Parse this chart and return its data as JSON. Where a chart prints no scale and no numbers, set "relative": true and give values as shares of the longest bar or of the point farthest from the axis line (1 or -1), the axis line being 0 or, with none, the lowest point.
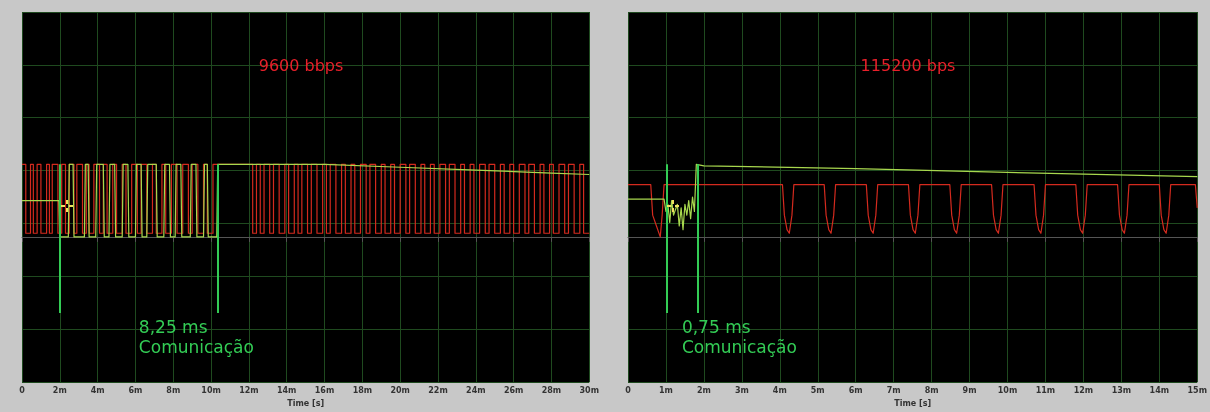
{
  "chart_data": [
    {
      "type": "line",
      "title": "9600 bbps",
      "xlabel": "Time [s]",
      "relative": true,
      "grid": true,
      "marker": "none",
      "xlim": [
        0,
        30
      ],
      "xticks": [
        0,
        {
          "value": 2,
          "label": "2m"
        },
        {
          "value": 4,
          "label": "4m"
        },
        {
          "value": 6,
          "label": "6m"
        },
        {
          "value": 8,
          "label": "8m"
        },
        {
          "value": 10,
          "label": "10m"
        },
        {
          "value": 12,
          "label": "12m"
        },
        {
          "value": 14,
          "label": "14m"
        },
        {
          "value": 16,
          "label": "16m"
        },
        {
          "value": 18,
          "label": "18m"
        },
        {
          "value": 20,
          "label": "20m"
        },
        {
          "value": 22,
          "label": "22m"
        },
        {
          "value": 24,
          "label": "24m"
        },
        {
          "value": 26,
          "label": "26m"
        },
        {
          "value": 28,
          "label": "28m"
        },
        {
          "value": 30,
          "label": "30m"
        }
      ],
      "series": [
        {
          "type": "step",
          "color": "#d42a1e",
          "x": [
            0,
            0.2,
            0.45,
            0.6,
            0.8,
            1.0,
            1.3,
            1.45,
            1.6,
            1.9,
            2.1,
            2.3,
            2.5,
            2.75,
            2.9,
            3.2,
            3.4,
            3.55,
            3.8,
            4.1,
            4.3,
            4.5,
            4.8,
            5.0,
            5.3,
            5.5,
            5.8,
            6.1,
            6.3,
            6.6,
            6.9,
            7.1,
            7.4,
            7.6,
            7.9,
            8.2,
            8.5,
            8.8,
            9.0,
            9.3,
            9.6,
            9.8,
            10.1,
            12.2,
            12.4,
            12.6,
            12.8,
            13.1,
            13.3,
            13.6,
            13.9,
            14.1,
            14.4,
            14.6,
            14.8,
            15.1,
            15.3,
            15.6,
            15.9,
            16.1,
            16.3,
            16.6,
            16.9,
            17.1,
            17.4,
            17.6,
            17.9,
            18.2,
            18.4,
            18.7,
            19.0,
            19.2,
            19.5,
            19.7,
            20.0,
            20.3,
            20.5,
            20.8,
            21.1,
            21.3,
            21.6,
            21.8,
            22.1,
            22.4,
            22.6,
            22.9,
            23.2,
            23.4,
            23.7,
            23.9,
            24.2,
            24.5,
            24.7,
            25.0,
            25.3,
            25.5,
            25.8,
            26.0,
            26.3,
            26.6,
            26.8,
            27.1,
            27.4,
            27.6,
            27.9,
            28.1,
            28.4,
            28.7,
            28.9,
            29.2,
            29.5,
            29.7,
            30
          ],
          "values": [
            1,
            0.05,
            1,
            0.05,
            1,
            0.05,
            1,
            0.05,
            1,
            0.05,
            1,
            0.05,
            1,
            0.05,
            1,
            0.05,
            1,
            0.05,
            1,
            0.05,
            1,
            0.05,
            1,
            0.05,
            1,
            0.05,
            1,
            0.05,
            1,
            0.05,
            1,
            0.05,
            1,
            0.05,
            1,
            0.05,
            1,
            0.05,
            1,
            0.05,
            1,
            0.05,
            1,
            0.05,
            1,
            0.05,
            1,
            0.05,
            1,
            0.05,
            1,
            0.05,
            1,
            0.05,
            1,
            0.05,
            1,
            0.05,
            1,
            0.05,
            1,
            0.05,
            1,
            0.05,
            1,
            0.05,
            1,
            0.05,
            1,
            0.05,
            1,
            0.05,
            1,
            0.05,
            1,
            0.05,
            1,
            0.05,
            1,
            0.05,
            1,
            0.05,
            1,
            0.05,
            1,
            0.05,
            1,
            0.05,
            1,
            0.05,
            1,
            0.05,
            1,
            0.05,
            1,
            0.05,
            1,
            0.05,
            1,
            0.05,
            1,
            0.05,
            1,
            0.05,
            1,
            0.05,
            1,
            0.05,
            1,
            0.05,
            1,
            0.05,
            0.05
          ]
        },
        {
          "type": "line",
          "color": "#a8d84e",
          "x": [
            0,
            1.95,
            2.0,
            2.45,
            2.5,
            2.7,
            2.75,
            3.3,
            3.35,
            3.5,
            3.55,
            3.9,
            3.95,
            4.3,
            4.35,
            4.6,
            4.65,
            4.9,
            4.95,
            5.3,
            5.35,
            5.6,
            5.65,
            6.0,
            6.05,
            6.3,
            6.35,
            6.6,
            6.65,
            7.1,
            7.15,
            7.5,
            7.55,
            7.8,
            7.85,
            8.1,
            8.15,
            8.4,
            8.45,
            8.9,
            8.95,
            9.2,
            9.25,
            9.6,
            9.65,
            9.8,
            9.85,
            10.3,
            10.35,
            16,
            20,
            24,
            28,
            30
          ],
          "values": [
            0.5,
            0.5,
            0,
            0,
            1,
            1,
            0,
            0,
            1,
            1,
            0,
            0,
            1,
            1,
            0,
            0,
            1,
            1,
            0,
            0,
            1,
            1,
            0,
            0,
            1,
            1,
            0,
            0,
            1,
            1,
            0,
            0,
            1,
            1,
            0,
            0,
            1,
            1,
            0,
            0,
            1,
            1,
            0,
            0,
            1,
            1,
            0,
            0,
            1,
            1,
            0.96,
            0.92,
            0.88,
            0.86
          ]
        }
      ],
      "ref_lines": [
        {
          "axis": "x",
          "value": 2.01,
          "color": "#33cc55"
        },
        {
          "axis": "x",
          "value": 10.35,
          "color": "#33cc55"
        }
      ],
      "annotations": [
        "8,25 ms",
        "Comunicação"
      ]
    },
    {
      "type": "line",
      "title": "115200 bps",
      "xlabel": "Time [s]",
      "relative": true,
      "grid": true,
      "marker": "none",
      "xlim": [
        0,
        15
      ],
      "xticks": [
        0,
        {
          "value": 1,
          "label": "1m"
        },
        {
          "value": 2,
          "label": "2m"
        },
        {
          "value": 3,
          "label": "3m"
        },
        {
          "value": 4,
          "label": "4m"
        },
        {
          "value": 5,
          "label": "5m"
        },
        {
          "value": 6,
          "label": "6m"
        },
        {
          "value": 7,
          "label": "7m"
        },
        {
          "value": 8,
          "label": "8m"
        },
        {
          "value": 9,
          "label": "9m"
        },
        {
          "value": 10,
          "label": "10m"
        },
        {
          "value": 11,
          "label": "11m"
        },
        {
          "value": 12,
          "label": "12m"
        },
        {
          "value": 13,
          "label": "13m"
        },
        {
          "value": 14,
          "label": "14m"
        },
        {
          "value": 15,
          "label": "15m"
        }
      ],
      "series": [
        {
          "type": "line",
          "color": "#d42a1e",
          "x": [
            0,
            0.6,
            0.65,
            0.75,
            0.85,
            0.9,
            0.95,
            4.07,
            4.12,
            4.19,
            4.25,
            4.32,
            4.37,
            5.17,
            5.22,
            5.29,
            5.35,
            5.42,
            5.47,
            6.28,
            6.33,
            6.4,
            6.46,
            6.53,
            6.58,
            7.39,
            7.44,
            7.51,
            7.57,
            7.64,
            7.69,
            8.48,
            8.53,
            8.6,
            8.66,
            8.73,
            8.78,
            9.58,
            9.63,
            9.7,
            9.76,
            9.83,
            9.88,
            10.7,
            10.75,
            10.82,
            10.88,
            10.95,
            11.0,
            11.8,
            11.85,
            11.92,
            11.98,
            12.05,
            12.1,
            12.9,
            12.95,
            13.02,
            13.08,
            13.15,
            13.2,
            14.0,
            14.05,
            14.12,
            14.18,
            14.25,
            14.3,
            14.95,
            15
          ],
          "values": [
            0.72,
            0.72,
            0.3,
            0.15,
            0,
            0.3,
            0.72,
            0.72,
            0.3,
            0.1,
            0.05,
            0.3,
            0.72,
            0.72,
            0.3,
            0.1,
            0.05,
            0.3,
            0.72,
            0.72,
            0.3,
            0.1,
            0.05,
            0.3,
            0.72,
            0.72,
            0.3,
            0.1,
            0.05,
            0.3,
            0.72,
            0.72,
            0.3,
            0.1,
            0.05,
            0.3,
            0.72,
            0.72,
            0.3,
            0.1,
            0.05,
            0.3,
            0.72,
            0.72,
            0.3,
            0.1,
            0.05,
            0.3,
            0.72,
            0.72,
            0.3,
            0.1,
            0.05,
            0.3,
            0.72,
            0.72,
            0.3,
            0.1,
            0.05,
            0.3,
            0.72,
            0.72,
            0.3,
            0.1,
            0.05,
            0.3,
            0.72,
            0.72,
            0.4
          ]
        },
        {
          "type": "line",
          "color": "#a8d84e",
          "x": [
            0,
            0.95,
            1.0,
            1.05,
            1.1,
            1.15,
            1.2,
            1.3,
            1.35,
            1.4,
            1.45,
            1.5,
            1.55,
            1.6,
            1.65,
            1.7,
            1.75,
            1.8,
            2.0,
            6,
            10,
            15
          ],
          "values": [
            0.52,
            0.52,
            0.35,
            0.45,
            0.2,
            0.5,
            0.3,
            0.45,
            0.15,
            0.4,
            0.1,
            0.45,
            0.3,
            0.5,
            0.25,
            0.55,
            0.35,
            1,
            0.98,
            0.94,
            0.89,
            0.83
          ]
        }
      ],
      "ref_lines": [
        {
          "axis": "x",
          "value": 1.01,
          "color": "#33cc55"
        },
        {
          "axis": "x",
          "value": 1.83,
          "color": "#33cc55"
        }
      ],
      "annotations": [
        "0,75 ms",
        "Comunicação"
      ]
    }
  ]
}
